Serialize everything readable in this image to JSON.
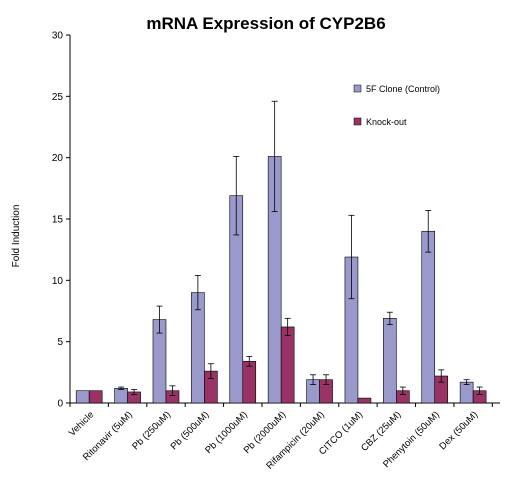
{
  "chart_data": {
    "type": "bar",
    "title": "mRNA Expression of CYP2B6",
    "xlabel": "",
    "ylabel": "Fold Induction",
    "ylim": [
      0,
      30
    ],
    "yticks": [
      0,
      5,
      10,
      15,
      20,
      25,
      30
    ],
    "grid": false,
    "legend_position": "right",
    "categories": [
      "Vehicle",
      "Ritonavir (5uM)",
      "Pb (250uM)",
      "Pb (500uM)",
      "Pb (1000uM)",
      "Pb (2000uM)",
      "Rifampicin (20uM)",
      "CITCO (1uM)",
      "CBZ (25uM)",
      "Phenytoin (50uM)",
      "Dex (50uM)"
    ],
    "series": [
      {
        "name": "5F Clone (Control)",
        "color": "#9999cc",
        "values": [
          1.0,
          1.2,
          6.8,
          9.0,
          16.9,
          20.1,
          1.9,
          11.9,
          6.9,
          14.0,
          1.7
        ],
        "errors": [
          0.0,
          0.1,
          1.1,
          1.4,
          3.2,
          4.5,
          0.4,
          3.4,
          0.5,
          1.7,
          0.2
        ]
      },
      {
        "name": "Knock-out",
        "color": "#993366",
        "values": [
          1.0,
          0.9,
          1.0,
          2.6,
          3.4,
          6.2,
          1.9,
          0.4,
          1.0,
          2.2,
          1.0
        ],
        "errors": [
          0.0,
          0.2,
          0.4,
          0.6,
          0.4,
          0.7,
          0.4,
          0.0,
          0.3,
          0.5,
          0.3
        ]
      }
    ]
  }
}
